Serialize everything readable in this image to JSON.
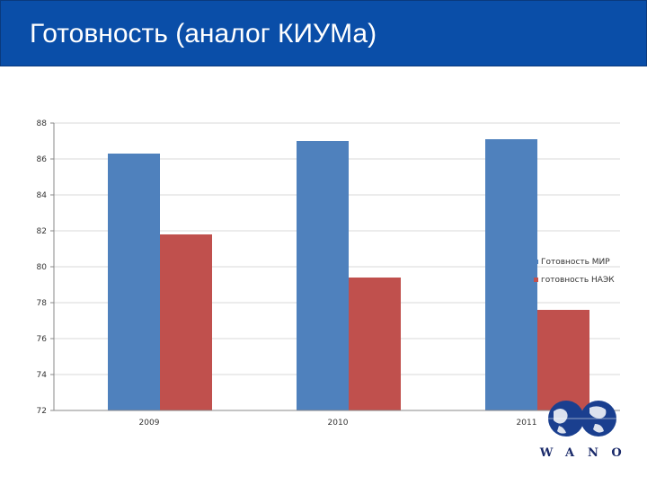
{
  "header": {
    "title": "Готовность (аналог КИУМа)"
  },
  "colors": {
    "header_bg": "#0a4ea8",
    "series1": "#4f81bd",
    "series2": "#c0504d",
    "logo": "#1a3f8f"
  },
  "logo": {
    "letters": [
      "W",
      "A",
      "N",
      "O"
    ]
  },
  "chart_data": {
    "type": "bar",
    "title": "",
    "xlabel": "",
    "ylabel": "",
    "categories": [
      "2009",
      "2010",
      "2011"
    ],
    "series": [
      {
        "name": "Готовность МИР",
        "values": [
          86.3,
          87.0,
          87.1
        ]
      },
      {
        "name": "готовность НАЭК",
        "values": [
          81.8,
          79.4,
          77.6
        ]
      }
    ],
    "ylim": [
      72,
      88
    ],
    "yticks": [
      "72",
      "74",
      "76",
      "78",
      "80",
      "82",
      "84",
      "86",
      "88"
    ],
    "grid": true,
    "legend": "right"
  }
}
